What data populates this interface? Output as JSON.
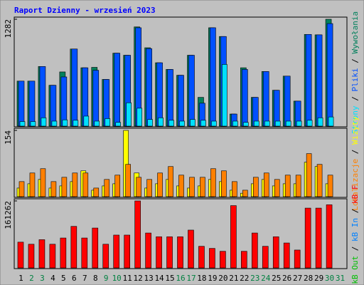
{
  "chart_data": [
    {
      "type": "bar",
      "title": "Raport Dzienny -  wrzesień 2023",
      "categories": [
        1,
        2,
        3,
        4,
        5,
        6,
        7,
        8,
        9,
        10,
        11,
        12,
        13,
        14,
        15,
        16,
        17,
        18,
        19,
        20,
        21,
        22,
        23,
        24,
        25,
        26,
        27,
        28,
        29,
        30,
        31
      ],
      "category_colors": [
        "#000000",
        "#008040",
        "#008040",
        "#000000",
        "#000000",
        "#000000",
        "#000000",
        "#000000",
        "#008040",
        "#008040",
        "#000000",
        "#000000",
        "#000000",
        "#000000",
        "#000000",
        "#008040",
        "#008040",
        "#000000",
        "#000000",
        "#000000",
        "#000000",
        "#000000",
        "#008040",
        "#008040",
        "#000000",
        "#000000",
        "#000000",
        "#000000",
        "#000000",
        "#008040",
        "#008040"
      ],
      "separator": " / ",
      "ylim": [
        0,
        1282
      ],
      "yticks": [
        1282
      ],
      "series": [
        {
          "name": "Wywołania",
          "color": "#00805c",
          "values": [
            540,
            540,
            715,
            490,
            650,
            925,
            700,
            705,
            560,
            875,
            850,
            1190,
            940,
            760,
            680,
            610,
            850,
            345,
            1180,
            1075,
            145,
            700,
            345,
            655,
            430,
            600,
            300,
            1100,
            1095,
            1282,
            0
          ]
        },
        {
          "name": "Pliki",
          "color": "#0050ff",
          "values": [
            540,
            540,
            715,
            490,
            590,
            925,
            700,
            670,
            560,
            875,
            850,
            1180,
            930,
            760,
            680,
            610,
            850,
            275,
            1180,
            1075,
            145,
            680,
            345,
            655,
            430,
            600,
            300,
            1100,
            1095,
            1230,
            0
          ]
        },
        {
          "name": "Strony",
          "color": "#00e0ff",
          "values": [
            55,
            55,
            100,
            60,
            75,
            70,
            120,
            60,
            90,
            45,
            280,
            215,
            80,
            100,
            70,
            60,
            80,
            70,
            60,
            740,
            60,
            45,
            60,
            60,
            60,
            60,
            60,
            70,
            100,
            110,
            0
          ]
        }
      ]
    },
    {
      "type": "bar",
      "ylim": [
        0,
        154
      ],
      "yticks": [
        154
      ],
      "series": [
        {
          "name": "Wizyty",
          "color": "#ffff00",
          "values": [
            20,
            30,
            40,
            20,
            25,
            35,
            60,
            15,
            25,
            30,
            154,
            55,
            20,
            30,
            40,
            25,
            20,
            25,
            40,
            35,
            15,
            8,
            30,
            40,
            25,
            30,
            30,
            80,
            70,
            30,
            0
          ]
        },
        {
          "name": "Lokalizacje",
          "color": "#ff8000",
          "values": [
            35,
            55,
            65,
            35,
            45,
            55,
            55,
            20,
            40,
            50,
            75,
            45,
            40,
            55,
            70,
            50,
            45,
            45,
            65,
            60,
            35,
            15,
            45,
            55,
            40,
            50,
            50,
            100,
            75,
            50,
            0
          ]
        }
      ]
    },
    {
      "type": "bar",
      "ylim": [
        0,
        161262
      ],
      "yticks": [
        161262
      ],
      "series": [
        {
          "name": "kB F",
          "color": "#ff0000",
          "values": [
            62000,
            57000,
            68000,
            57000,
            72000,
            100000,
            72000,
            96000,
            57000,
            79000,
            79000,
            161262,
            84000,
            75000,
            75000,
            75000,
            91000,
            52000,
            47000,
            40000,
            150000,
            40000,
            84000,
            52000,
            75000,
            60000,
            43000,
            144000,
            144000,
            152000,
            0
          ]
        },
        {
          "name": "kB In",
          "color": "#0080ff",
          "values": []
        },
        {
          "name": "kB Out",
          "color": "#00c000",
          "values": []
        }
      ]
    }
  ]
}
